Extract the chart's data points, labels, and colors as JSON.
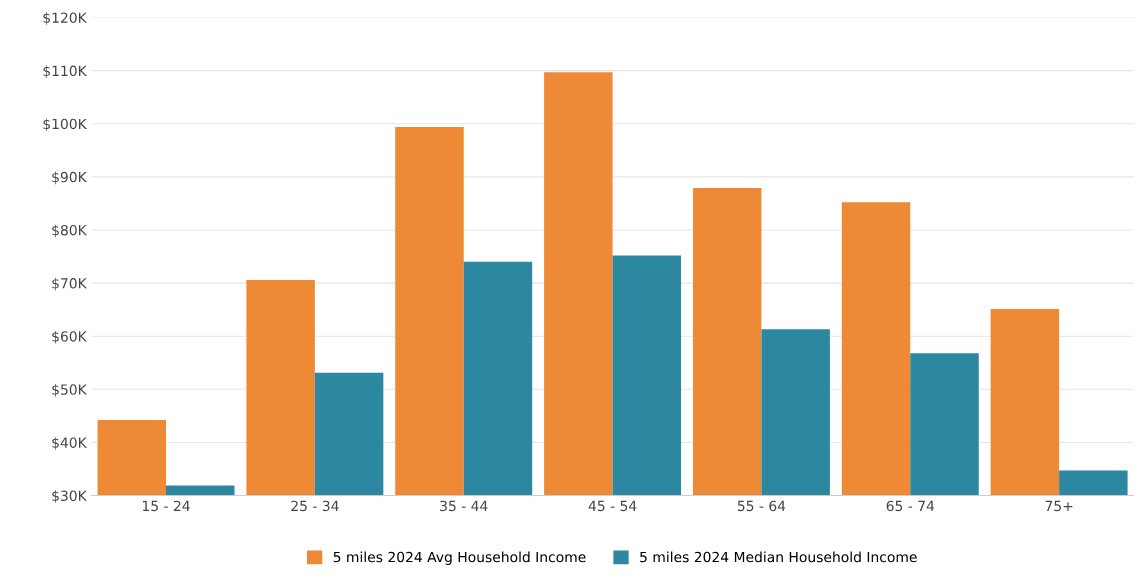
{
  "chart_data": {
    "type": "bar",
    "categories": [
      "15 - 24",
      "25 - 34",
      "35 - 44",
      "45 - 54",
      "55 - 64",
      "65 - 74",
      "75+"
    ],
    "series": [
      {
        "name": "5 miles 2024 Avg Household Income",
        "color": "#ee8a36",
        "values": [
          44200,
          70600,
          99400,
          109700,
          87900,
          85200,
          65100
        ]
      },
      {
        "name": "5 miles 2024 Median Household Income",
        "color": "#2b88a0",
        "values": [
          31900,
          53100,
          74000,
          75200,
          61300,
          56800,
          34700
        ]
      }
    ],
    "ylim": [
      30000,
      120000
    ],
    "yticks": [
      {
        "value": 30000,
        "label": "$30K"
      },
      {
        "value": 40000,
        "label": "$40K"
      },
      {
        "value": 50000,
        "label": "$50K"
      },
      {
        "value": 60000,
        "label": "$60K"
      },
      {
        "value": 70000,
        "label": "$70K"
      },
      {
        "value": 80000,
        "label": "$80K"
      },
      {
        "value": 90000,
        "label": "$90K"
      },
      {
        "value": 100000,
        "label": "$100K"
      },
      {
        "value": 110000,
        "label": "$110K"
      },
      {
        "value": 120000,
        "label": "$120K"
      }
    ],
    "grid": "y",
    "legend": "bottom"
  }
}
